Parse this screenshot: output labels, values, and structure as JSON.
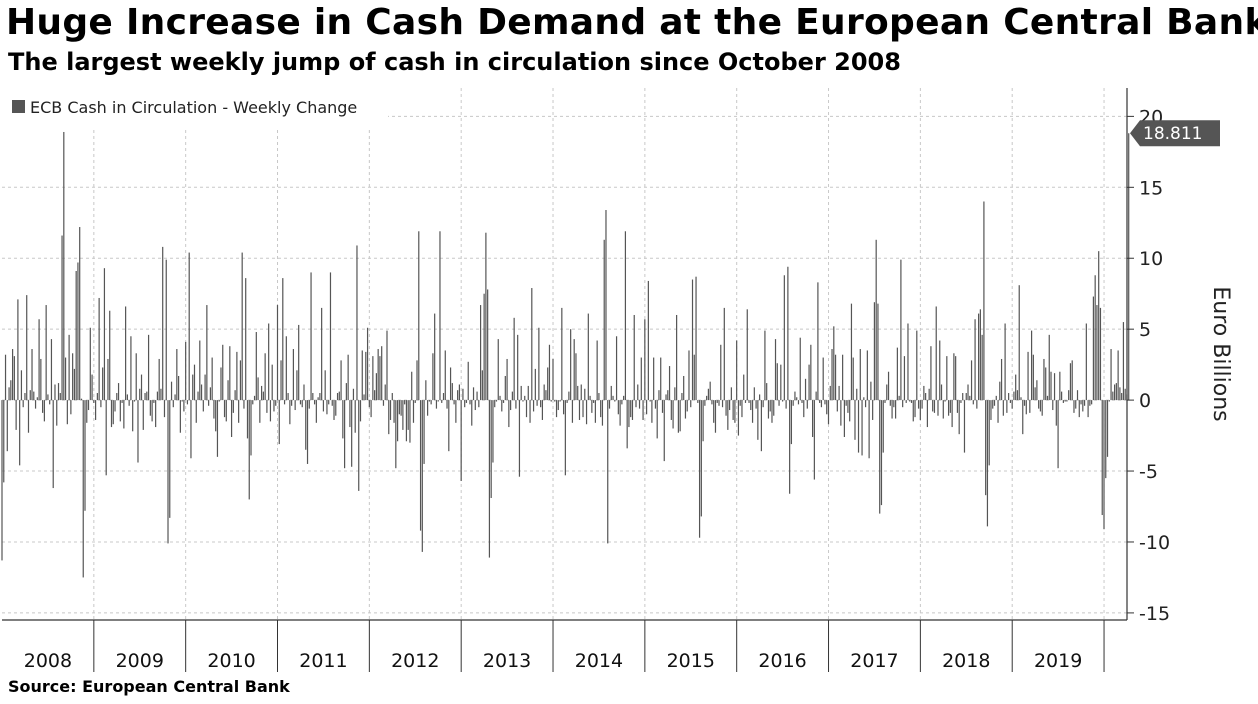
{
  "title": "Huge Increase in Cash Demand at the European Central Bank",
  "subtitle": "The largest weekly jump of cash in circulation since October 2008",
  "source": "Source: European Central Bank",
  "colors": {
    "bar": "#555555",
    "grid": "#c8c8c8",
    "axis": "#333333",
    "callout": "#555555"
  },
  "chart_data": {
    "type": "bar",
    "legend": "ECB Cash in Circulation - Weekly Change",
    "legend_position": "top-left",
    "ylabel": "Euro Billions",
    "y_axis_side": "right",
    "ylim": [
      -15.5,
      22
    ],
    "yticks": [
      20,
      15,
      10,
      5,
      0,
      -5,
      -10,
      -15
    ],
    "ytick_labels": [
      "20",
      "15",
      "10",
      "5",
      "0",
      "-5",
      "-10",
      "-15"
    ],
    "grid": true,
    "x_categories": [
      "2008",
      "2009",
      "2010",
      "2011",
      "2012",
      "2013",
      "2014",
      "2015",
      "2016",
      "2017",
      "2018",
      "2019"
    ],
    "x_range": [
      2008.0,
      2020.25
    ],
    "last_value": 18.811,
    "last_value_label": "18.811",
    "series": [
      {
        "name": "ECB Cash in Circulation - Weekly Change",
        "frequency": "weekly",
        "start": 2008.0,
        "step_years": 0.01923,
        "values": [
          -11.3,
          -5.8,
          3.2,
          -3.6,
          0.9,
          1.4,
          3.6,
          3.1,
          -2.1,
          7.1,
          -4.6,
          2.1,
          -0.5,
          0.5,
          7.4,
          -2.3,
          0.7,
          3.6,
          0.6,
          -0.6,
          0.2,
          5.7,
          2.9,
          -0.9,
          -1.5,
          6.7,
          0.4,
          -0.3,
          4.3,
          -6.2,
          1.1,
          -1.8,
          1.2,
          0.5,
          11.6,
          18.9,
          3.0,
          -1.7,
          4.6,
          -1.0,
          3.3,
          2.2,
          9.1,
          9.7,
          12.2,
          0.1,
          -12.5,
          -7.8,
          -1.6,
          -0.7,
          5.1,
          1.8,
          -0.2,
          -1.4,
          0.5,
          7.2,
          -0.5,
          2.3,
          9.3,
          -5.3,
          2.9,
          6.3,
          -1.9,
          -1.7,
          -0.8,
          0.5,
          1.2,
          -1.5,
          -0.2,
          -2.0,
          6.6,
          0.4,
          -0.4,
          4.5,
          -2.2,
          -0.1,
          3.3,
          -4.4,
          0.8,
          1.8,
          -2.1,
          0.5,
          0.6,
          4.6,
          -1.1,
          -1.5,
          -0.2,
          -1.9,
          0.6,
          2.9,
          0.8,
          10.8,
          -1.2,
          9.9,
          -10.1,
          -8.3,
          1.3,
          -0.5,
          0.4,
          3.6,
          1.7,
          -2.3,
          -0.1,
          -0.8,
          4.1,
          -0.3,
          10.4,
          -4.1,
          1.8,
          2.5,
          -1.6,
          0.6,
          4.2,
          1.1,
          -0.8,
          1.8,
          6.7,
          -0.4,
          0.9,
          3.0,
          -1.3,
          -2.2,
          -4.0,
          -0.1,
          2.3,
          3.9,
          -1.2,
          -1.5,
          1.4,
          3.8,
          -2.6,
          -0.9,
          0.7,
          3.4,
          -1.6,
          2.8,
          10.4,
          -0.6,
          8.6,
          -2.7,
          -7.0,
          -3.9,
          -0.3,
          0.3,
          4.8,
          1.6,
          -1.6,
          1.0,
          0.6,
          3.3,
          -0.9,
          5.4,
          -1.5,
          2.5,
          -0.8,
          -0.4,
          6.7,
          -3.1,
          2.8,
          8.6,
          -0.3,
          4.5,
          0.5,
          -1.7,
          -0.4,
          3.6,
          -0.7,
          2.1,
          5.3,
          -0.3,
          -0.5,
          1.1,
          -3.5,
          -4.5,
          -0.6,
          9.0,
          0.5,
          -0.3,
          -1.6,
          0.2,
          0.5,
          6.5,
          -0.8,
          2.1,
          -1.0,
          -0.3,
          9.0,
          -0.4,
          -1.4,
          -1.1,
          0.5,
          0.6,
          2.8,
          -2.7,
          -4.8,
          1.2,
          3.2,
          -1.9,
          -4.7,
          0.8,
          -2.3,
          10.9,
          -6.4,
          -1.5,
          3.5,
          0.4,
          3.4,
          5.1,
          -0.5,
          -1.2,
          3.1,
          0.7,
          1.9,
          3.6,
          3.1,
          3.8,
          -0.4,
          1.1,
          4.9,
          -2.4,
          -1.4,
          0.5,
          -1.6,
          -4.8,
          -2.9,
          -1.0,
          -1.1,
          -2.1,
          -0.3,
          -2.9,
          -2.1,
          -3.0,
          2.0,
          -1.6,
          -0.2,
          2.8,
          11.9,
          -9.2,
          -10.7,
          -4.5,
          1.4,
          -1.1,
          -0.1,
          -0.3,
          3.3,
          6.1,
          -0.6,
          -0.1,
          11.9,
          -0.2,
          0.5,
          3.5,
          -0.6,
          -3.6,
          2.3,
          1.2,
          -0.3,
          -1.6,
          0.7,
          1.1,
          -5.7,
          0.8,
          -0.5,
          -0.2,
          2.7,
          -0.3,
          -1.8,
          0.9,
          -0.7,
          0.6,
          -0.5,
          6.7,
          2.1,
          7.5,
          11.8,
          7.8,
          -11.1,
          -6.9,
          -4.4,
          -0.5,
          -0.1,
          4.3,
          0.3,
          -0.8,
          -0.2,
          1.7,
          2.9,
          -1.9,
          -0.7,
          0.6,
          5.8,
          -0.6,
          4.6,
          -5.4,
          1.0,
          -0.1,
          0.3,
          -1.2,
          1.0,
          -1.6,
          7.9,
          -0.8,
          2.2,
          -0.4,
          5.1,
          -0.5,
          -1.4,
          1.1,
          0.7,
          2.3,
          3.9,
          -0.1,
          2.9,
          -0.1,
          -1.2,
          -0.7,
          -0.1,
          6.5,
          -1.0,
          -5.3,
          -0.2,
          0.6,
          5.0,
          -1.6,
          4.3,
          3.3,
          1.0,
          -1.4,
          1.1,
          -1.2,
          0.8,
          -1.7,
          6.1,
          0.3,
          -0.9,
          -0.2,
          -1.6,
          4.2,
          0.5,
          -1.2,
          -1.8,
          11.3,
          13.4,
          -10.1,
          -0.6,
          1.0,
          0.3,
          -0.1,
          4.5,
          -1.0,
          -1.8,
          -0.3,
          0.3,
          11.9,
          -3.4,
          -1.9,
          -1.2,
          -1.4,
          6.0,
          -0.5,
          1.1,
          -0.6,
          3.0,
          -1.4,
          5.7,
          -1.0,
          8.4,
          -0.1,
          -1.6,
          3.0,
          -0.6,
          -2.7,
          0.7,
          3.0,
          -0.9,
          -4.3,
          0.4,
          0.7,
          2.4,
          -1.4,
          -2.0,
          0.9,
          6.0,
          -2.3,
          -2.2,
          0.5,
          1.7,
          -1.3,
          -0.8,
          3.5,
          -0.5,
          8.5,
          3.2,
          8.7,
          -0.2,
          -9.7,
          -8.2,
          -2.9,
          -0.4,
          0.3,
          0.8,
          1.3,
          -0.3,
          -1.6,
          -2.3,
          -0.2,
          -0.4,
          3.9,
          -0.5,
          6.5,
          -1.1,
          -2.1,
          -0.7,
          0.9,
          -1.4,
          -1.6,
          4.2,
          -2.5,
          -0.4,
          -1.2,
          1.8,
          -0.2,
          6.4,
          -0.2,
          -0.7,
          -1.6,
          0.9,
          -0.6,
          -2.8,
          0.4,
          -3.6,
          -0.5,
          4.9,
          1.2,
          -1.3,
          -0.8,
          -1.6,
          -1.1,
          4.3,
          2.6,
          -0.4,
          2.5,
          -0.1,
          8.8,
          -0.6,
          9.4,
          -6.6,
          -3.1,
          -0.4,
          0.6,
          0.2,
          -0.3,
          4.4,
          -0.2,
          -1.2,
          1.5,
          -0.6,
          2.5,
          3.9,
          -2.6,
          -5.6,
          0.6,
          8.3,
          -0.2,
          -0.5,
          3.0,
          -0.3,
          -1.0,
          -1.7,
          1.0,
          3.6,
          5.2,
          3.2,
          -0.8,
          1.0,
          -1.8,
          3.2,
          -2.6,
          -0.4,
          -0.9,
          -1.5,
          6.8,
          3.0,
          -2.8,
          0.8,
          -3.7,
          3.6,
          -3.9,
          0.2,
          -0.5,
          3.5,
          -4.1,
          1.3,
          -1.4,
          6.9,
          11.3,
          6.8,
          -8.0,
          -7.4,
          -3.7,
          -0.2,
          1.1,
          2.0,
          -0.4,
          -1.3,
          -0.5,
          -1.3,
          3.7,
          0.3,
          9.9,
          -0.5,
          3.1,
          -0.2,
          5.4,
          -0.1,
          -0.2,
          -1.5,
          -1.2,
          4.9,
          -0.6,
          -1.4,
          -0.6,
          1.0,
          0.5,
          -1.9,
          0.8,
          3.8,
          -0.8,
          -0.9,
          6.6,
          -1.1,
          4.2,
          1.1,
          -1.3,
          -0.1,
          3.1,
          -1.1,
          -0.9,
          -1.9,
          3.3,
          3.1,
          -0.9,
          -2.4,
          -0.2,
          0.5,
          -3.7,
          0.5,
          1.1,
          0.3,
          2.8,
          -0.3,
          5.7,
          -0.6,
          6.1,
          6.4,
          4.6,
          14.0,
          -6.7,
          -8.9,
          -4.6,
          -1.4,
          -0.6,
          -0.4,
          0.3,
          -1.6,
          1.3,
          2.9,
          -1.1,
          5.4,
          -0.9,
          0.5,
          -0.2,
          -0.6,
          0.6,
          1.8,
          0.7,
          8.1,
          0.2,
          -2.4,
          -0.4,
          -1.0,
          3.4,
          -0.9,
          4.9,
          3.2,
          0.9,
          1.4,
          -0.6,
          -0.8,
          -1.1,
          2.9,
          2.3,
          0.3,
          4.6,
          2.0,
          -0.7,
          1.9,
          -1.8,
          -4.8,
          2.0,
          0.6,
          -0.2,
          -0.1,
          -0.1,
          0.7,
          2.6,
          2.8,
          -0.9,
          -0.6,
          0.7,
          -1.2,
          -0.3,
          -0.8,
          -0.4,
          5.4,
          -1.2,
          -0.4,
          -0.3,
          7.3,
          8.8,
          6.7,
          10.5,
          6.5,
          -8.1,
          -9.1,
          -5.5,
          -4.0,
          -0.1,
          3.6,
          0.6,
          1.1,
          1.2,
          3.5,
          0.9,
          0.5,
          5.5,
          0.8,
          0.4,
          18.811
        ]
      }
    ]
  }
}
